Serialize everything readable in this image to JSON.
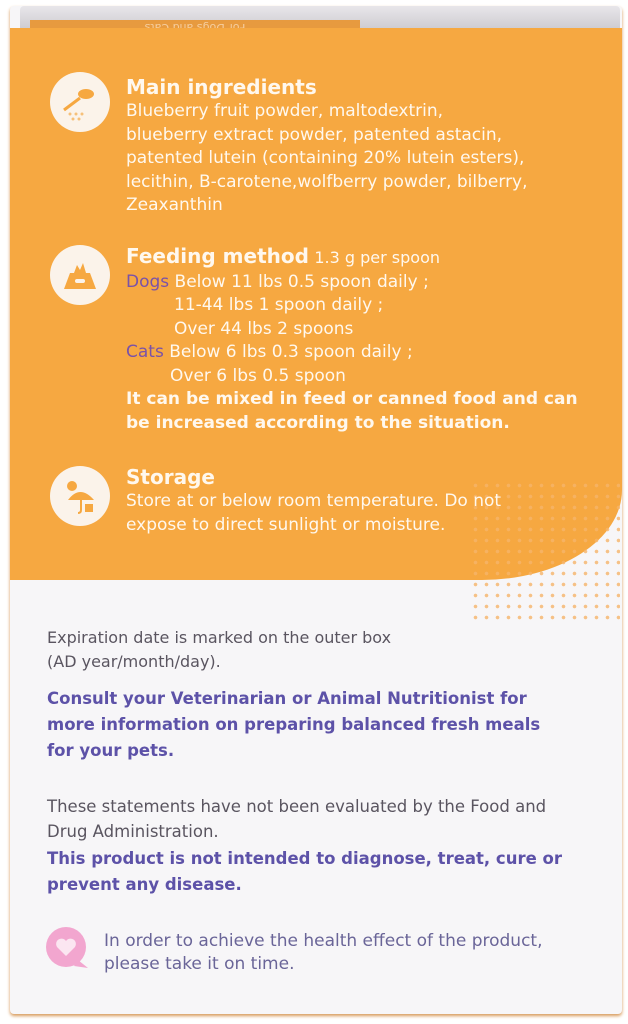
{
  "top_flap": {
    "text": "For Dogs and Cats"
  },
  "ingredients": {
    "icon": "spoon-powder-icon",
    "title": "Main ingredients",
    "lines": [
      "Blueberry fruit powder, maltodextrin,",
      "blueberry extract powder, patented astacin,",
      "patented lutein (containing 20% lutein esters),",
      "lecithin, B-carotene,wolfberry powder, bilberry,",
      "Zeaxanthin"
    ]
  },
  "feeding": {
    "icon": "food-bowl-icon",
    "title": "Feeding method",
    "dose": "1.3 g per spoon",
    "dogs_label": "Dogs",
    "dogs": [
      "Below 11 lbs 0.5 spoon daily ;",
      "11-44 lbs 1 spoon daily ;",
      "Over 44 lbs 2 spoons"
    ],
    "cats_label": "Cats",
    "cats": [
      "Below 6 lbs 0.3 spoon daily ;",
      "Over 6 lbs 0.5 spoon"
    ],
    "note": [
      "It can be mixed in feed or canned food and can",
      "be increased according to the situation."
    ]
  },
  "storage": {
    "icon": "sun-umbrella-icon",
    "title": "Storage",
    "lines": [
      "Store at or below room temperature. Do not",
      "expose to direct sunlight or moisture."
    ]
  },
  "expiration": [
    "Expiration date is marked on the outer box",
    "(AD year/month/day)."
  ],
  "consult": [
    "Consult your Veterinarian or Animal Nutritionist for",
    "more information on preparing balanced fresh meals",
    "for your pets."
  ],
  "fda": [
    "These statements have not been evaluated by the Food and",
    "Drug Administration."
  ],
  "disclaimer": [
    "This product is not intended to diagnose, treat, cure or",
    "prevent any disease."
  ],
  "reminder": {
    "icon": "heart-speech-bubble-icon",
    "lines": [
      "In order to achieve the health effect of the product,",
      "please take it on time."
    ]
  },
  "colors": {
    "orange": "#f6a841",
    "purple": "#5d52a8",
    "pink": "#f2a6cf"
  }
}
